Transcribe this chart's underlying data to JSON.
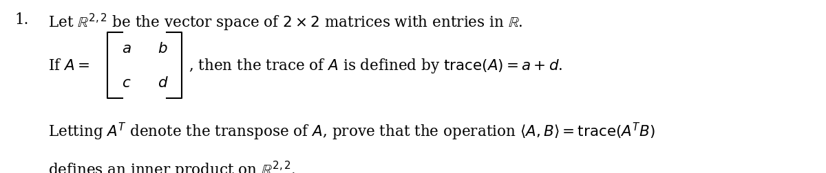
{
  "background_color": "#ffffff",
  "figsize": [
    12.0,
    2.53
  ],
  "dpi": 100,
  "text_color": "#000000",
  "fs": 15.5
}
